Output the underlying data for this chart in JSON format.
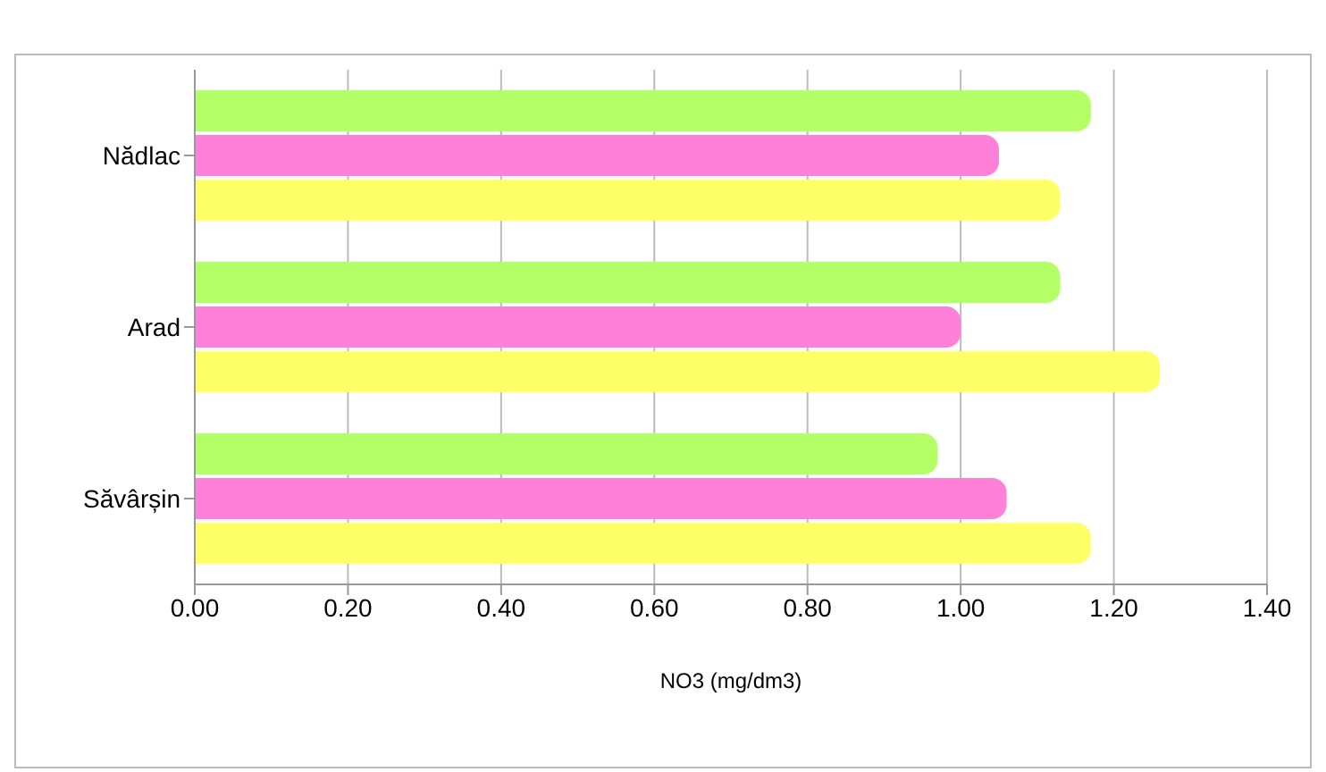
{
  "chart_data": {
    "type": "bar",
    "orientation": "horizontal",
    "xlabel": "NO3 (mg/dm3)",
    "categories": [
      "Nădlac",
      "Arad",
      "Săvârșin"
    ],
    "series": [
      {
        "color": "#b3ff66",
        "values": [
          1.17,
          1.13,
          0.97
        ]
      },
      {
        "color": "#ff80d9",
        "values": [
          1.05,
          1.0,
          1.06
        ]
      },
      {
        "color": "#ffff66",
        "values": [
          1.13,
          1.26,
          1.17
        ]
      }
    ],
    "xlim": [
      0,
      1.4
    ],
    "xticks": [
      {
        "value": 0,
        "label": "0.00"
      },
      {
        "value": 0.2,
        "label": "0.20"
      },
      {
        "value": 0.4,
        "label": "0.40"
      },
      {
        "value": 0.6,
        "label": "0.60"
      },
      {
        "value": 0.8,
        "label": "0.80"
      },
      {
        "value": 1,
        "label": "1.00"
      },
      {
        "value": 1.2,
        "label": "1.20"
      },
      {
        "value": 1.4,
        "label": "1.40"
      }
    ],
    "grid": "x",
    "legend": false
  }
}
